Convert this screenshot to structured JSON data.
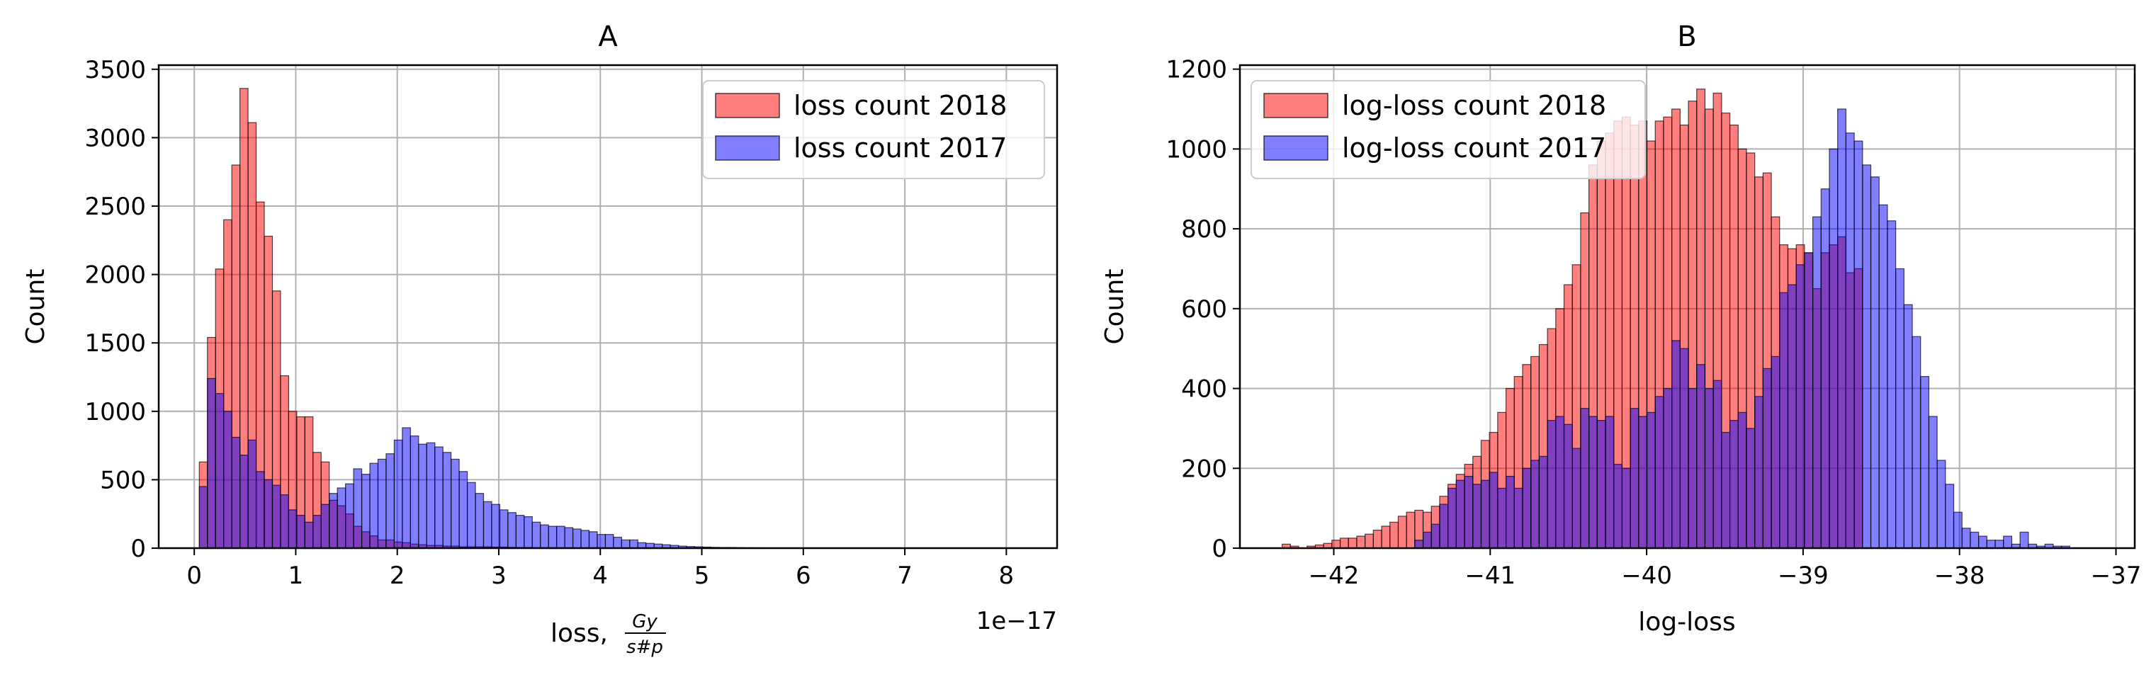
{
  "chart_data": [
    {
      "type": "histogram",
      "title": "A",
      "xlabel": "loss, ",
      "xlabel_fraction": {
        "numerator": "Gy",
        "denominator": "s#p"
      },
      "ylabel": "Count",
      "x_offset_label": "1e−17",
      "xlim": [
        -0.35,
        8.5
      ],
      "ylim": [
        0,
        3530
      ],
      "xticks": [
        0,
        1,
        2,
        3,
        4,
        5,
        6,
        7,
        8
      ],
      "xtick_labels": [
        "0",
        "1",
        "2",
        "3",
        "4",
        "5",
        "6",
        "7",
        "8"
      ],
      "yticks": [
        0,
        500,
        1000,
        1500,
        2000,
        2500,
        3000,
        3500
      ],
      "ytick_labels": [
        "0",
        "500",
        "1000",
        "1500",
        "2000",
        "2500",
        "3000",
        "3500"
      ],
      "grid": true,
      "legend_position": "upper-right",
      "series": [
        {
          "name": "loss count 2018",
          "color": "#ff0000",
          "opacity": 0.5,
          "bin_start": 0.05,
          "bin_width": 0.08,
          "values": [
            630,
            1540,
            2040,
            2400,
            2800,
            3360,
            3110,
            2530,
            2280,
            1880,
            1260,
            1000,
            960,
            960,
            700,
            630,
            350,
            310,
            250,
            160,
            120,
            90,
            60,
            60,
            45,
            40,
            30,
            25,
            20,
            20,
            15,
            15,
            10,
            10,
            10,
            10,
            8,
            8,
            6,
            5,
            5,
            4,
            4,
            3,
            3,
            3,
            2,
            2,
            2,
            2,
            2,
            2,
            1,
            1,
            1,
            1,
            1,
            1,
            1,
            1,
            1,
            1,
            1,
            1,
            1,
            1,
            1,
            1,
            1,
            1,
            1,
            1,
            1,
            1,
            1,
            1,
            1,
            1,
            1,
            1,
            1,
            1,
            1,
            1,
            1,
            1,
            1,
            1,
            1,
            1,
            1,
            1,
            1,
            1,
            1,
            1,
            1,
            1,
            1,
            1
          ]
        },
        {
          "name": "loss count 2017",
          "color": "#0000ff",
          "opacity": 0.5,
          "bin_start": 0.05,
          "bin_width": 0.08,
          "values": [
            450,
            1240,
            1130,
            1000,
            810,
            680,
            790,
            560,
            500,
            460,
            390,
            280,
            240,
            190,
            240,
            320,
            400,
            440,
            470,
            580,
            540,
            620,
            650,
            690,
            790,
            880,
            820,
            760,
            770,
            740,
            700,
            650,
            560,
            480,
            400,
            340,
            320,
            280,
            260,
            240,
            230,
            190,
            170,
            160,
            160,
            150,
            140,
            130,
            120,
            100,
            100,
            80,
            60,
            60,
            40,
            35,
            30,
            25,
            20,
            15,
            12,
            10,
            8,
            6,
            5,
            5,
            4,
            3,
            3,
            2,
            2,
            2,
            2,
            1,
            1,
            1,
            1,
            1,
            1,
            1,
            1,
            1,
            1,
            1,
            1,
            1,
            1,
            1,
            1,
            1,
            1,
            1,
            1,
            1,
            1,
            1,
            1,
            1,
            1,
            1
          ]
        }
      ]
    },
    {
      "type": "histogram",
      "title": "B",
      "xlabel": "log-loss",
      "ylabel": "Count",
      "xlim": [
        -42.6,
        -36.88
      ],
      "ylim": [
        0,
        1210
      ],
      "xticks": [
        -42,
        -41,
        -40,
        -39,
        -38,
        -37
      ],
      "xtick_labels": [
        "−42",
        "−41",
        "−40",
        "−39",
        "−38",
        "−37"
      ],
      "yticks": [
        0,
        200,
        400,
        600,
        800,
        1000,
        1200
      ],
      "ytick_labels": [
        "0",
        "200",
        "400",
        "600",
        "800",
        "1000",
        "1200"
      ],
      "grid": true,
      "legend_position": "upper-left",
      "series": [
        {
          "name": "log-loss count 2018",
          "color": "#ff0000",
          "opacity": 0.5,
          "bin_start": -42.33,
          "bin_width": 0.053,
          "values": [
            10,
            5,
            0,
            5,
            8,
            12,
            20,
            25,
            25,
            30,
            35,
            45,
            55,
            65,
            80,
            90,
            95,
            90,
            105,
            130,
            160,
            185,
            210,
            230,
            270,
            290,
            340,
            400,
            430,
            460,
            480,
            510,
            550,
            600,
            660,
            710,
            840,
            960,
            1020,
            1040,
            1070,
            1080,
            1060,
            1070,
            1020,
            1070,
            1080,
            1100,
            1060,
            1120,
            1150,
            1100,
            1140,
            1090,
            1060,
            1000,
            990,
            930,
            940,
            830,
            760,
            750,
            760,
            740,
            650,
            740,
            760,
            780,
            690,
            700,
            0,
            0,
            0,
            0,
            0,
            0,
            0,
            0,
            0,
            0,
            0,
            0,
            0,
            0,
            0,
            0,
            0,
            0,
            0,
            0,
            0,
            0,
            0,
            0,
            0,
            0,
            0,
            0,
            0,
            0
          ]
        },
        {
          "name": "log-loss count 2017",
          "color": "#0000ff",
          "opacity": 0.5,
          "bin_start": -42.33,
          "bin_width": 0.053,
          "values": [
            0,
            0,
            0,
            0,
            0,
            0,
            0,
            0,
            0,
            0,
            0,
            0,
            0,
            0,
            0,
            0,
            20,
            40,
            60,
            110,
            150,
            170,
            180,
            160,
            170,
            190,
            150,
            180,
            150,
            200,
            220,
            230,
            320,
            330,
            310,
            250,
            350,
            330,
            320,
            330,
            210,
            200,
            350,
            330,
            340,
            380,
            400,
            520,
            500,
            400,
            460,
            400,
            420,
            290,
            320,
            340,
            300,
            380,
            450,
            480,
            640,
            660,
            710,
            740,
            830,
            900,
            1000,
            1100,
            1040,
            1020,
            960,
            930,
            860,
            820,
            700,
            610,
            530,
            430,
            330,
            220,
            160,
            90,
            50,
            40,
            30,
            20,
            20,
            30,
            10,
            40,
            10,
            5,
            10,
            5,
            5,
            0,
            0,
            0,
            0,
            0
          ]
        }
      ]
    }
  ]
}
